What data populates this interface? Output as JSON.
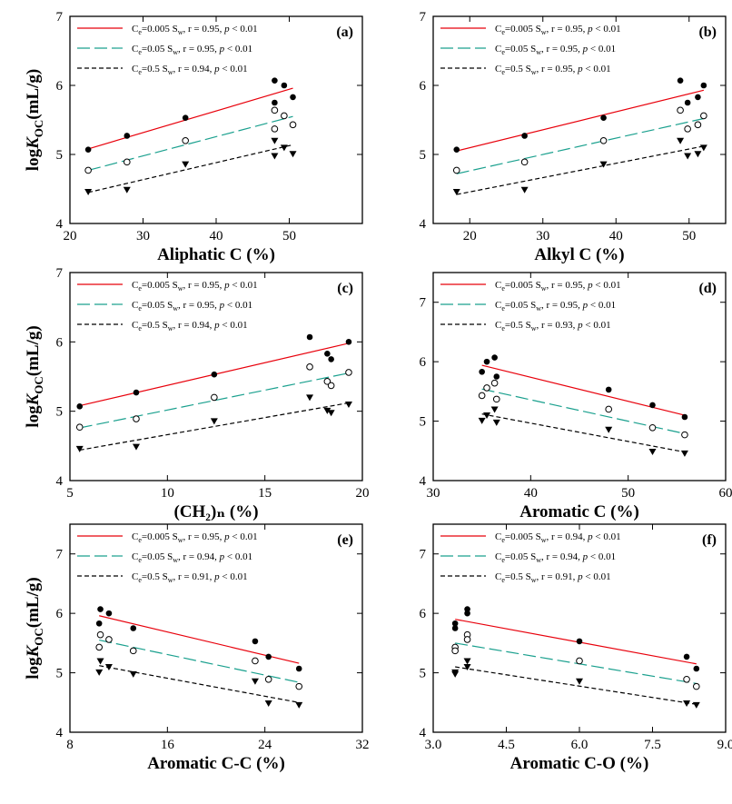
{
  "colors": {
    "s1": "#e8000b",
    "s2": "#1aa08e",
    "s3": "#000000"
  },
  "ylabel_parts": {
    "log": "log",
    "k": "K",
    "sub": "OC",
    "unit": "(mL/g)"
  },
  "legend_parts": {
    "ce": "C",
    "e": "e",
    "w": "w",
    "p": "p"
  },
  "chart_data": [
    {
      "type": "scatter",
      "panel": "(a)",
      "xlabel": "Aliphatic C (%)",
      "xlim": [
        20,
        60
      ],
      "ylim": [
        4,
        7
      ],
      "xticks": [
        "20",
        "30",
        "40",
        "50"
      ],
      "xtick_values": [
        20,
        30,
        40,
        50
      ],
      "yticks": [
        "4",
        "5",
        "6",
        "7"
      ],
      "ytick_values": [
        4,
        5,
        6,
        7
      ],
      "ylabel_visible": true,
      "series": [
        {
          "name": "=0.005 S",
          "stats": ", r = 0.95, ",
          "pval": " < 0.01",
          "marker": "filled-circle",
          "points": [
            [
              22.5,
              5.07
            ],
            [
              27.8,
              5.27
            ],
            [
              35.8,
              5.53
            ],
            [
              48.0,
              6.07
            ],
            [
              48.0,
              5.75
            ],
            [
              49.3,
              6.0
            ],
            [
              50.5,
              5.83
            ]
          ],
          "fit": [
            [
              22.5,
              5.08
            ],
            [
              50.5,
              5.96
            ]
          ]
        },
        {
          "name": "=0.05 S",
          "stats": ", r = 0.95, ",
          "pval": " < 0.01",
          "marker": "open-circle",
          "points": [
            [
              22.5,
              4.77
            ],
            [
              27.8,
              4.89
            ],
            [
              35.8,
              5.2
            ],
            [
              48.0,
              5.64
            ],
            [
              48.0,
              5.37
            ],
            [
              49.3,
              5.56
            ],
            [
              50.5,
              5.43
            ]
          ],
          "fit": [
            [
              22.5,
              4.77
            ],
            [
              50.5,
              5.55
            ]
          ]
        },
        {
          "name": "=0.5 S",
          "stats": ", r = 0.94, ",
          "pval": " < 0.01",
          "marker": "filled-triangle",
          "points": [
            [
              22.5,
              4.46
            ],
            [
              27.8,
              4.49
            ],
            [
              35.8,
              4.86
            ],
            [
              48.0,
              5.2
            ],
            [
              48.0,
              4.98
            ],
            [
              49.3,
              5.1
            ],
            [
              50.5,
              5.01
            ]
          ],
          "fit": [
            [
              22.5,
              4.45
            ],
            [
              50.5,
              5.14
            ]
          ]
        }
      ]
    },
    {
      "type": "scatter",
      "panel": "(b)",
      "xlabel": "Alkyl C (%)",
      "xlim": [
        15,
        55
      ],
      "ylim": [
        4,
        7
      ],
      "xticks": [
        "20",
        "30",
        "40",
        "50"
      ],
      "xtick_values": [
        20,
        30,
        40,
        50
      ],
      "yticks": [
        "4",
        "5",
        "6",
        "7"
      ],
      "ytick_values": [
        4,
        5,
        6,
        7
      ],
      "ylabel_visible": false,
      "series": [
        {
          "name": "=0.005 S",
          "stats": ", r = 0.95, ",
          "pval": " < 0.01",
          "marker": "filled-circle",
          "points": [
            [
              18.2,
              5.07
            ],
            [
              27.5,
              5.27
            ],
            [
              38.3,
              5.53
            ],
            [
              48.8,
              6.07
            ],
            [
              49.8,
              5.75
            ],
            [
              51.2,
              5.83
            ],
            [
              52.0,
              6.0
            ]
          ],
          "fit": [
            [
              18.2,
              5.05
            ],
            [
              52.0,
              5.93
            ]
          ]
        },
        {
          "name": "=0.05 S",
          "stats": ", r = 0.95, ",
          "pval": " < 0.01",
          "marker": "open-circle",
          "points": [
            [
              18.2,
              4.77
            ],
            [
              27.5,
              4.89
            ],
            [
              38.3,
              5.2
            ],
            [
              48.8,
              5.64
            ],
            [
              49.8,
              5.37
            ],
            [
              51.2,
              5.43
            ],
            [
              52.0,
              5.56
            ]
          ],
          "fit": [
            [
              18.2,
              4.72
            ],
            [
              52.0,
              5.52
            ]
          ]
        },
        {
          "name": "=0.5 S",
          "stats": ", r = 0.95, ",
          "pval": " < 0.01",
          "marker": "filled-triangle",
          "points": [
            [
              18.2,
              4.46
            ],
            [
              27.5,
              4.49
            ],
            [
              38.3,
              4.86
            ],
            [
              48.8,
              5.2
            ],
            [
              49.8,
              4.98
            ],
            [
              51.2,
              5.01
            ],
            [
              52.0,
              5.1
            ]
          ],
          "fit": [
            [
              18.2,
              4.42
            ],
            [
              52.0,
              5.12
            ]
          ]
        }
      ]
    },
    {
      "type": "scatter",
      "panel": "(c)",
      "xlabel": "(CH₂)ₙ (%)",
      "xlim": [
        5,
        20
      ],
      "ylim": [
        4,
        7
      ],
      "xticks": [
        "5",
        "10",
        "15",
        "20"
      ],
      "xtick_values": [
        5,
        10,
        15,
        20
      ],
      "yticks": [
        "4",
        "5",
        "6",
        "7"
      ],
      "ytick_values": [
        4,
        5,
        6,
        7
      ],
      "ylabel_visible": true,
      "series": [
        {
          "name": "=0.005 S",
          "stats": ", r = 0.95, ",
          "pval": " < 0.01",
          "marker": "filled-circle",
          "points": [
            [
              5.5,
              5.07
            ],
            [
              8.4,
              5.27
            ],
            [
              12.4,
              5.53
            ],
            [
              17.3,
              6.07
            ],
            [
              18.2,
              5.83
            ],
            [
              18.4,
              5.75
            ],
            [
              19.3,
              6.0
            ]
          ],
          "fit": [
            [
              5.5,
              5.08
            ],
            [
              19.3,
              5.98
            ]
          ]
        },
        {
          "name": "=0.05 S",
          "stats": ", r = 0.95, ",
          "pval": " < 0.01",
          "marker": "open-circle",
          "points": [
            [
              5.5,
              4.77
            ],
            [
              8.4,
              4.89
            ],
            [
              12.4,
              5.2
            ],
            [
              17.3,
              5.64
            ],
            [
              18.2,
              5.43
            ],
            [
              18.4,
              5.37
            ],
            [
              19.3,
              5.56
            ]
          ],
          "fit": [
            [
              5.5,
              4.76
            ],
            [
              19.3,
              5.55
            ]
          ]
        },
        {
          "name": "=0.5 S",
          "stats": ", r = 0.94, ",
          "pval": " < 0.01",
          "marker": "filled-triangle",
          "points": [
            [
              5.5,
              4.46
            ],
            [
              8.4,
              4.49
            ],
            [
              12.4,
              4.86
            ],
            [
              17.3,
              5.2
            ],
            [
              18.2,
              5.01
            ],
            [
              18.4,
              4.98
            ],
            [
              19.3,
              5.1
            ]
          ],
          "fit": [
            [
              5.5,
              4.44
            ],
            [
              19.3,
              5.12
            ]
          ]
        }
      ]
    },
    {
      "type": "scatter",
      "panel": "(d)",
      "xlabel": "Aromatic C (%)",
      "xlim": [
        30,
        60
      ],
      "ylim": [
        4,
        7.5
      ],
      "xticks": [
        "30",
        "40",
        "50",
        "60"
      ],
      "xtick_values": [
        30,
        40,
        50,
        60
      ],
      "yticks": [
        "4",
        "5",
        "6",
        "7"
      ],
      "ytick_values": [
        4,
        5,
        6,
        7
      ],
      "ylabel_visible": false,
      "series": [
        {
          "name": "=0.005 S",
          "stats": ", r = 0.95, ",
          "pval": " < 0.01",
          "marker": "filled-circle",
          "points": [
            [
              35.0,
              5.83
            ],
            [
              35.5,
              6.0
            ],
            [
              36.3,
              6.07
            ],
            [
              36.5,
              5.75
            ],
            [
              48.0,
              5.53
            ],
            [
              52.5,
              5.27
            ],
            [
              55.8,
              5.07
            ]
          ],
          "fit": [
            [
              35.0,
              5.94
            ],
            [
              55.8,
              5.1
            ]
          ]
        },
        {
          "name": "=0.05 S",
          "stats": ", r = 0.95, ",
          "pval": " < 0.01",
          "marker": "open-circle",
          "points": [
            [
              35.0,
              5.43
            ],
            [
              35.5,
              5.56
            ],
            [
              36.3,
              5.64
            ],
            [
              36.5,
              5.37
            ],
            [
              48.0,
              5.2
            ],
            [
              52.5,
              4.89
            ],
            [
              55.8,
              4.77
            ]
          ],
          "fit": [
            [
              35.0,
              5.54
            ],
            [
              55.8,
              4.79
            ]
          ]
        },
        {
          "name": "=0.5 S",
          "stats": ", r = 0.93, ",
          "pval": " < 0.01",
          "marker": "filled-triangle",
          "points": [
            [
              35.0,
              5.01
            ],
            [
              35.5,
              5.1
            ],
            [
              36.3,
              5.2
            ],
            [
              36.5,
              4.98
            ],
            [
              48.0,
              4.86
            ],
            [
              52.5,
              4.49
            ],
            [
              55.8,
              4.46
            ]
          ],
          "fit": [
            [
              35.0,
              5.12
            ],
            [
              55.8,
              4.48
            ]
          ]
        }
      ]
    },
    {
      "type": "scatter",
      "panel": "(e)",
      "xlabel": "Aromatic C-C (%)",
      "xlim": [
        8,
        32
      ],
      "ylim": [
        4,
        7.5
      ],
      "xticks": [
        "8",
        "16",
        "24",
        "32"
      ],
      "xtick_values": [
        8,
        16,
        24,
        32
      ],
      "yticks": [
        "4",
        "5",
        "6",
        "7"
      ],
      "ytick_values": [
        4,
        5,
        6,
        7
      ],
      "ylabel_visible": true,
      "series": [
        {
          "name": "=0.005 S",
          "stats": ", r = 0.95, ",
          "pval": " < 0.01",
          "marker": "filled-circle",
          "points": [
            [
              10.4,
              5.83
            ],
            [
              10.5,
              6.07
            ],
            [
              11.2,
              6.0
            ],
            [
              13.2,
              5.75
            ],
            [
              23.2,
              5.53
            ],
            [
              24.3,
              5.27
            ],
            [
              26.8,
              5.07
            ]
          ],
          "fit": [
            [
              10.4,
              5.96
            ],
            [
              26.8,
              5.16
            ]
          ]
        },
        {
          "name": "=0.05 S",
          "stats": ", r = 0.94, ",
          "pval": " < 0.01",
          "marker": "open-circle",
          "points": [
            [
              10.4,
              5.43
            ],
            [
              10.5,
              5.64
            ],
            [
              11.2,
              5.56
            ],
            [
              13.2,
              5.37
            ],
            [
              23.2,
              5.2
            ],
            [
              24.3,
              4.89
            ],
            [
              26.8,
              4.77
            ]
          ],
          "fit": [
            [
              10.4,
              5.55
            ],
            [
              26.8,
              4.84
            ]
          ]
        },
        {
          "name": "=0.5 S",
          "stats": ", r = 0.91, ",
          "pval": " < 0.01",
          "marker": "filled-triangle",
          "points": [
            [
              10.4,
              5.01
            ],
            [
              10.5,
              5.2
            ],
            [
              11.2,
              5.1
            ],
            [
              13.2,
              4.98
            ],
            [
              23.2,
              4.86
            ],
            [
              24.3,
              4.49
            ],
            [
              26.8,
              4.46
            ]
          ],
          "fit": [
            [
              10.4,
              5.12
            ],
            [
              26.8,
              4.5
            ]
          ]
        }
      ]
    },
    {
      "type": "scatter",
      "panel": "(f)",
      "xlabel": "Aromatic C-O (%)",
      "xlim": [
        3.0,
        9.0
      ],
      "ylim": [
        4,
        7.5
      ],
      "xticks": [
        "3.0",
        "4.5",
        "6.0",
        "7.5",
        "9.0"
      ],
      "xtick_values": [
        3.0,
        4.5,
        6.0,
        7.5,
        9.0
      ],
      "yticks": [
        "4",
        "5",
        "6",
        "7"
      ],
      "ytick_values": [
        4,
        5,
        6,
        7
      ],
      "ylabel_visible": false,
      "series": [
        {
          "name": "=0.005 S",
          "stats": ", r = 0.94, ",
          "pval": " < 0.01",
          "marker": "filled-circle",
          "points": [
            [
              3.45,
              5.83
            ],
            [
              3.45,
              5.75
            ],
            [
              3.7,
              6.07
            ],
            [
              3.7,
              6.0
            ],
            [
              6.0,
              5.53
            ],
            [
              8.2,
              5.27
            ],
            [
              8.4,
              5.07
            ]
          ],
          "fit": [
            [
              3.45,
              5.9
            ],
            [
              8.4,
              5.15
            ]
          ]
        },
        {
          "name": "=0.05 S",
          "stats": ", r = 0.94, ",
          "pval": " < 0.01",
          "marker": "open-circle",
          "points": [
            [
              3.45,
              5.43
            ],
            [
              3.45,
              5.37
            ],
            [
              3.7,
              5.64
            ],
            [
              3.7,
              5.56
            ],
            [
              6.0,
              5.2
            ],
            [
              8.2,
              4.89
            ],
            [
              8.4,
              4.77
            ]
          ],
          "fit": [
            [
              3.45,
              5.5
            ],
            [
              8.4,
              4.82
            ]
          ]
        },
        {
          "name": "=0.5 S",
          "stats": ", r = 0.91, ",
          "pval": " < 0.01",
          "marker": "filled-triangle",
          "points": [
            [
              3.45,
              5.01
            ],
            [
              3.45,
              4.98
            ],
            [
              3.7,
              5.2
            ],
            [
              3.7,
              5.1
            ],
            [
              6.0,
              4.86
            ],
            [
              8.2,
              4.49
            ],
            [
              8.4,
              4.46
            ]
          ],
          "fit": [
            [
              3.45,
              5.1
            ],
            [
              8.4,
              4.47
            ]
          ]
        }
      ]
    }
  ]
}
